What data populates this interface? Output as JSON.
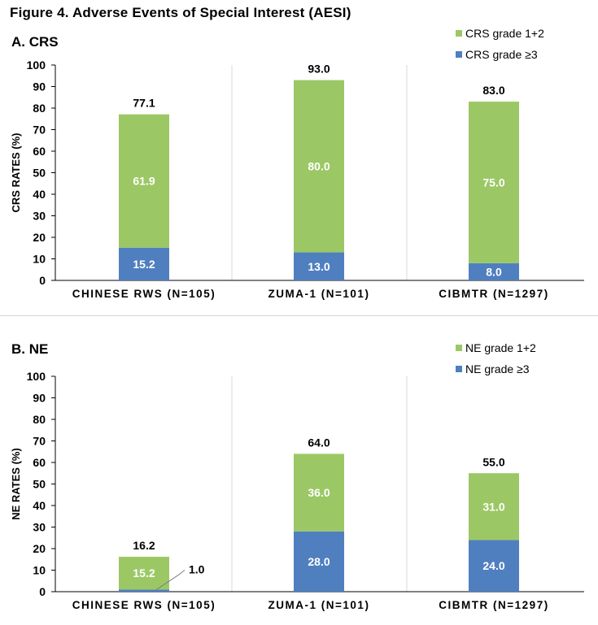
{
  "figure_title": "Figure 4.  Adverse Events of Special Interest (AESI)",
  "colors": {
    "low_grade": "#9bc865",
    "high_grade": "#4f7fbf"
  },
  "chart_data": [
    {
      "type": "bar",
      "title": "A. CRS",
      "ylabel": "CRS RATES (%)",
      "xlabel": "",
      "ylim": [
        0,
        100
      ],
      "yticks": [
        0,
        10,
        20,
        30,
        40,
        50,
        60,
        70,
        80,
        90,
        100
      ],
      "stacked": true,
      "grid": false,
      "legend_position": "top-right",
      "categories": [
        "CHINESE RWS (N=105)",
        "ZUMA-1 (N=101)",
        "CIBMTR (N=1297)"
      ],
      "series": [
        {
          "name": "CRS grade ≥3",
          "values": [
            15.2,
            13.0,
            8.0
          ],
          "labels": [
            "15.2",
            "13.0",
            "8.0"
          ]
        },
        {
          "name": "CRS grade 1+2",
          "values": [
            61.9,
            80.0,
            75.0
          ],
          "labels": [
            "61.9",
            "80.0",
            "75.0"
          ]
        }
      ],
      "totals": [
        77.1,
        93.0,
        83.0
      ],
      "total_labels": [
        "77.1",
        "93.0",
        "83.0"
      ]
    },
    {
      "type": "bar",
      "title": "B. NE",
      "ylabel": "NE RATES (%)",
      "xlabel": "",
      "ylim": [
        0,
        100
      ],
      "yticks": [
        0,
        10,
        20,
        30,
        40,
        50,
        60,
        70,
        80,
        90,
        100
      ],
      "stacked": true,
      "grid": false,
      "legend_position": "top-right",
      "categories": [
        "CHINESE RWS (N=105)",
        "ZUMA-1 (N=101)",
        "CIBMTR (N=1297)"
      ],
      "series": [
        {
          "name": "NE grade ≥3",
          "values": [
            1.0,
            28.0,
            24.0
          ],
          "labels": [
            "1.0",
            "28.0",
            "24.0"
          ]
        },
        {
          "name": "NE grade 1+2",
          "values": [
            15.2,
            36.0,
            31.0
          ],
          "labels": [
            "15.2",
            "36.0",
            "31.0"
          ]
        }
      ],
      "totals": [
        16.2,
        64.0,
        55.0
      ],
      "total_labels": [
        "16.2",
        "64.0",
        "55.0"
      ]
    }
  ]
}
